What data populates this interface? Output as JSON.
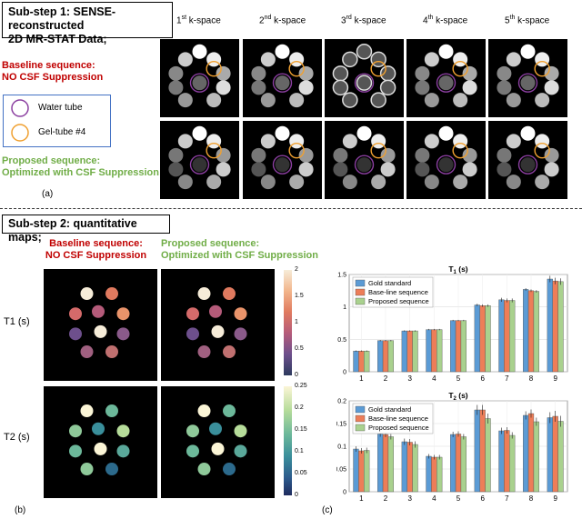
{
  "step1": {
    "title_line1": "Sub-step 1: SENSE-reconstructed",
    "title_line2": "2D MR-STAT Data;"
  },
  "step2": {
    "title": "Sub-step 2: quantitative maps;"
  },
  "kspace_headers": [
    {
      "sup": "st",
      "pre": "1",
      "post": " k-space"
    },
    {
      "sup": "nd",
      "pre": "2",
      "post": " k-space"
    },
    {
      "sup": "rd",
      "pre": "3",
      "post": " k-space"
    },
    {
      "sup": "th",
      "pre": "4",
      "post": " k-space"
    },
    {
      "sup": "th",
      "pre": "5",
      "post": " k-space"
    }
  ],
  "baseline": {
    "line1": "Baseline sequence:",
    "line2": "NO CSF Suppression"
  },
  "proposed": {
    "line1": "Proposed sequence:",
    "line2": "Optimized with CSF Suppression"
  },
  "legend": {
    "water": "Water tube",
    "gel": "Gel-tube #4",
    "water_color": "#8b3fa0",
    "gel_color": "#f0a030"
  },
  "panel_labels": {
    "a": "(a)",
    "b": "(b)",
    "c": "(c)"
  },
  "map_rows": {
    "t1": "T1 (s)",
    "t2": "T2 (s)"
  },
  "colorbar_t1": [
    "2",
    "1.5",
    "1",
    "0.5",
    "0"
  ],
  "colorbar_t2": [
    "0.25",
    "0.2",
    "0.15",
    "0.1",
    "0.05",
    "0"
  ],
  "colors": {
    "gold": "#5b9bd5",
    "base": "#ed7d58",
    "proposed": "#a9d18e",
    "baseline_text": "#c00000",
    "proposed_text": "#70ad47"
  },
  "chart_data": [
    {
      "type": "bar",
      "title": "T1 (s)",
      "categories": [
        "1",
        "2",
        "3",
        "4",
        "5",
        "6",
        "7",
        "8",
        "9"
      ],
      "ylim": [
        0,
        1.5
      ],
      "grid": true,
      "legend_position": "top-left",
      "series": [
        {
          "name": "Gold standard",
          "values": [
            0.32,
            0.48,
            0.63,
            0.65,
            0.79,
            1.03,
            1.11,
            1.27,
            1.43
          ]
        },
        {
          "name": "Base-line sequence",
          "values": [
            0.32,
            0.48,
            0.63,
            0.65,
            0.79,
            1.02,
            1.1,
            1.25,
            1.4
          ]
        },
        {
          "name": "Proposed sequence",
          "values": [
            0.32,
            0.48,
            0.63,
            0.65,
            0.79,
            1.02,
            1.1,
            1.24,
            1.39
          ]
        }
      ],
      "errors": [
        0.01,
        0.01,
        0.01,
        0.01,
        0.01,
        0.02,
        0.03,
        0.02,
        0.05
      ]
    },
    {
      "type": "bar",
      "title": "T2 (s)",
      "categories": [
        "1",
        "2",
        "3",
        "4",
        "5",
        "6",
        "7",
        "8",
        "9"
      ],
      "ylim": [
        0,
        0.2
      ],
      "grid": true,
      "legend_position": "top-left",
      "series": [
        {
          "name": "Gold standard",
          "values": [
            0.094,
            0.127,
            0.11,
            0.078,
            0.126,
            0.18,
            0.134,
            0.168,
            0.163
          ]
        },
        {
          "name": "Base-line sequence",
          "values": [
            0.09,
            0.126,
            0.109,
            0.076,
            0.127,
            0.18,
            0.135,
            0.172,
            0.166
          ]
        },
        {
          "name": "Proposed sequence",
          "values": [
            0.091,
            0.121,
            0.104,
            0.076,
            0.121,
            0.161,
            0.124,
            0.154,
            0.155
          ]
        }
      ],
      "errors": [
        0.006,
        0.006,
        0.007,
        0.005,
        0.006,
        0.011,
        0.007,
        0.009,
        0.012
      ]
    }
  ]
}
